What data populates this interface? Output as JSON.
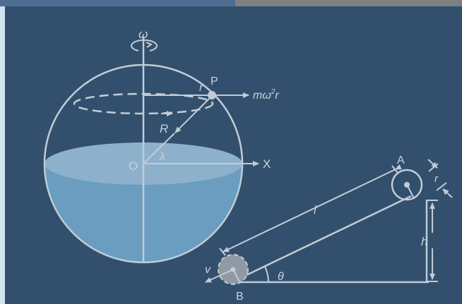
{
  "colors": {
    "background": "#32506d",
    "topbar_left": "#4f6c91",
    "topbar_right": "#7f8082",
    "left_strip": "#cfe3f3",
    "line": "#c2ccd6",
    "liquid": "#6a9dbf",
    "liquid_surface": "#8db1cb",
    "ball": "#8f9aa5"
  },
  "labels": {
    "omega": "ω",
    "point_p": "P",
    "small_r": "r",
    "force": "mω",
    "force_sup": "2",
    "force_end": "r",
    "radius": "R",
    "origin": "O",
    "lambda": "λ",
    "x_axis": "X",
    "point_a": "A",
    "r_ball": "r",
    "length": "l",
    "height": "h",
    "velocity": "v",
    "theta": "θ",
    "point_b": "B"
  }
}
